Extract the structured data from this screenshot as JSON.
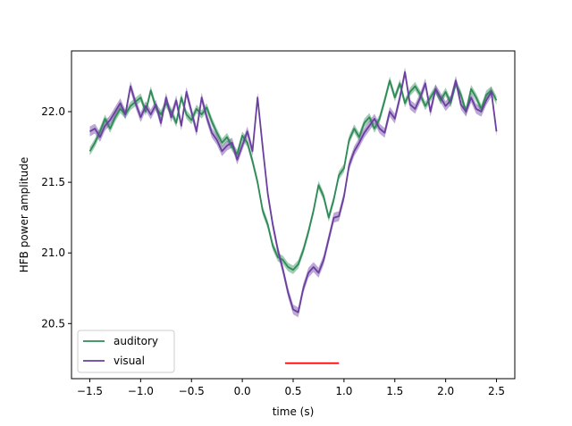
{
  "chart_data": {
    "type": "line",
    "title": "",
    "xlabel": "time (s)",
    "ylabel": "HFB power amplitude",
    "xlim": [
      -1.68,
      2.68
    ],
    "ylim": [
      20.11,
      22.43
    ],
    "xticks": [
      -1.5,
      -1.0,
      -0.5,
      0.0,
      0.5,
      1.0,
      1.5,
      2.0,
      2.5
    ],
    "xtick_labels": [
      "−1.5",
      "−1.0",
      "−0.5",
      "0.0",
      "0.5",
      "1.0",
      "1.5",
      "2.0",
      "2.5"
    ],
    "yticks": [
      20.5,
      21.0,
      21.5,
      22.0
    ],
    "ytick_labels": [
      "20.5",
      "21.0",
      "21.5",
      "22.0"
    ],
    "grid": false,
    "legend_position": "bottom-left",
    "series": [
      {
        "name": "auditory",
        "color": "#2e8b57",
        "band_halfwidth": 0.03,
        "x": [
          -1.5,
          -1.45,
          -1.4,
          -1.35,
          -1.3,
          -1.25,
          -1.2,
          -1.15,
          -1.1,
          -1.05,
          -1.0,
          -0.95,
          -0.9,
          -0.85,
          -0.8,
          -0.75,
          -0.7,
          -0.65,
          -0.6,
          -0.55,
          -0.5,
          -0.45,
          -0.4,
          -0.35,
          -0.3,
          -0.25,
          -0.2,
          -0.15,
          -0.1,
          -0.05,
          0.0,
          0.05,
          0.1,
          0.15,
          0.2,
          0.25,
          0.3,
          0.35,
          0.4,
          0.45,
          0.5,
          0.55,
          0.6,
          0.65,
          0.7,
          0.75,
          0.8,
          0.85,
          0.9,
          0.95,
          1.0,
          1.05,
          1.1,
          1.15,
          1.2,
          1.25,
          1.3,
          1.35,
          1.4,
          1.45,
          1.5,
          1.55,
          1.6,
          1.65,
          1.7,
          1.75,
          1.8,
          1.85,
          1.9,
          1.95,
          2.0,
          2.05,
          2.1,
          2.15,
          2.2,
          2.25,
          2.3,
          2.35,
          2.4,
          2.45,
          2.5
        ],
        "y": [
          21.72,
          21.78,
          21.86,
          21.95,
          21.88,
          21.96,
          22.02,
          21.98,
          22.04,
          22.07,
          22.1,
          22.0,
          22.15,
          22.03,
          21.98,
          22.06,
          22.0,
          21.92,
          22.1,
          21.98,
          21.94,
          22.02,
          21.98,
          22.03,
          21.93,
          21.85,
          21.78,
          21.82,
          21.75,
          21.7,
          21.83,
          21.78,
          21.65,
          21.5,
          21.3,
          21.2,
          21.05,
          20.97,
          20.95,
          20.9,
          20.88,
          20.92,
          21.02,
          21.15,
          21.3,
          21.48,
          21.4,
          21.25,
          21.38,
          21.55,
          21.6,
          21.8,
          21.88,
          21.82,
          21.92,
          21.96,
          21.88,
          21.95,
          22.08,
          22.22,
          22.1,
          22.2,
          22.06,
          22.14,
          22.18,
          22.12,
          22.04,
          22.1,
          22.16,
          22.08,
          22.14,
          22.06,
          22.2,
          22.12,
          22.0,
          22.16,
          22.1,
          22.02,
          22.12,
          22.15,
          22.08
        ]
      },
      {
        "name": "visual",
        "color": "#6a3fa0",
        "band_halfwidth": 0.035,
        "x": [
          -1.5,
          -1.45,
          -1.4,
          -1.35,
          -1.3,
          -1.25,
          -1.2,
          -1.15,
          -1.1,
          -1.05,
          -1.0,
          -0.95,
          -0.9,
          -0.85,
          -0.8,
          -0.75,
          -0.7,
          -0.65,
          -0.6,
          -0.55,
          -0.5,
          -0.45,
          -0.4,
          -0.35,
          -0.3,
          -0.25,
          -0.2,
          -0.15,
          -0.1,
          -0.05,
          0.0,
          0.05,
          0.1,
          0.15,
          0.2,
          0.25,
          0.3,
          0.35,
          0.4,
          0.45,
          0.5,
          0.55,
          0.6,
          0.65,
          0.7,
          0.75,
          0.8,
          0.85,
          0.9,
          0.95,
          1.0,
          1.05,
          1.1,
          1.15,
          1.2,
          1.25,
          1.3,
          1.35,
          1.4,
          1.45,
          1.5,
          1.55,
          1.6,
          1.65,
          1.7,
          1.75,
          1.8,
          1.85,
          1.9,
          1.95,
          2.0,
          2.05,
          2.1,
          2.15,
          2.2,
          2.25,
          2.3,
          2.35,
          2.4,
          2.45,
          2.5
        ],
        "y": [
          21.86,
          21.88,
          21.82,
          21.9,
          21.94,
          22.0,
          22.06,
          21.98,
          22.18,
          22.06,
          21.96,
          22.04,
          21.98,
          22.05,
          21.92,
          22.1,
          21.96,
          22.08,
          21.9,
          22.14,
          22.0,
          21.86,
          22.1,
          21.96,
          21.85,
          21.8,
          21.72,
          21.76,
          21.78,
          21.66,
          21.76,
          21.86,
          21.72,
          22.1,
          21.75,
          21.42,
          21.2,
          21.02,
          20.88,
          20.72,
          20.6,
          20.58,
          20.75,
          20.86,
          20.9,
          20.86,
          20.95,
          21.1,
          21.25,
          21.26,
          21.4,
          21.62,
          21.72,
          21.78,
          21.85,
          21.9,
          21.95,
          21.88,
          21.85,
          22.0,
          21.95,
          22.1,
          22.28,
          22.05,
          22.02,
          22.1,
          22.2,
          22.0,
          22.16,
          22.1,
          22.04,
          22.08,
          22.22,
          22.05,
          22.0,
          22.1,
          22.02,
          22.0,
          22.08,
          22.14,
          21.86
        ]
      }
    ],
    "annotations": [
      {
        "type": "hline_segment",
        "color": "#ff0000",
        "x_start": 0.42,
        "x_end": 0.95,
        "y": 20.22
      }
    ]
  }
}
